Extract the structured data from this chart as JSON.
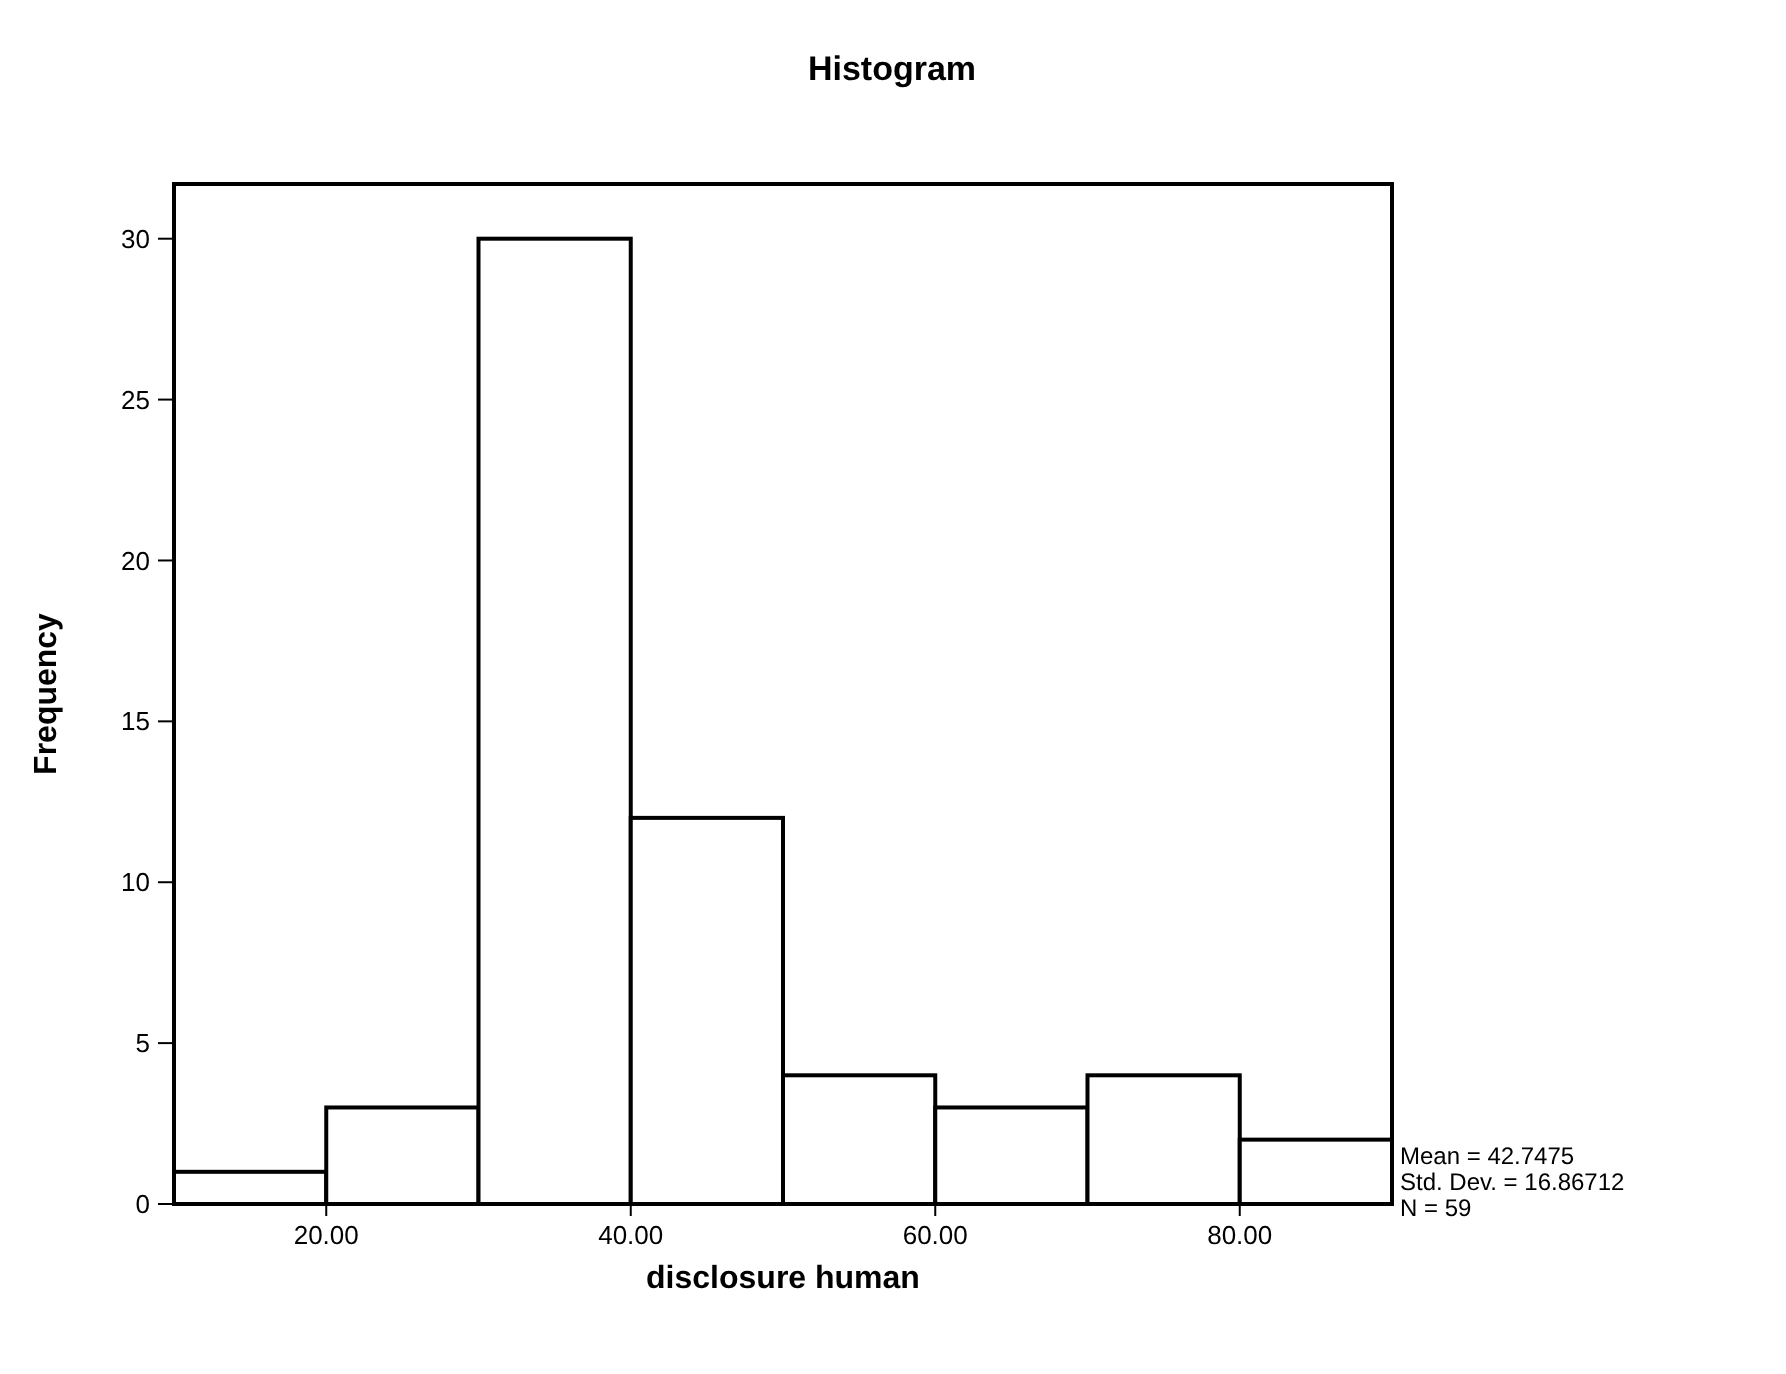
{
  "chart_data": {
    "type": "histogram",
    "title": "Histogram",
    "xlabel": "disclosure human",
    "ylabel": "Frequency",
    "bins": [
      10,
      20,
      30,
      40,
      50,
      60,
      70,
      80,
      90
    ],
    "values": [
      1,
      3,
      30,
      12,
      4,
      3,
      4,
      2
    ],
    "color": "#ffffff",
    "xlim": [
      10,
      90
    ],
    "xticks": [
      {
        "value": 20,
        "label": "20.00"
      },
      {
        "value": 40,
        "label": "40.00"
      },
      {
        "value": 60,
        "label": "60.00"
      },
      {
        "value": 80,
        "label": "80.00"
      }
    ],
    "ylim": [
      0,
      31.7
    ],
    "yticks": [
      0,
      5,
      10,
      15,
      20,
      25,
      30
    ],
    "annotations": [
      "Mean = 42.7475",
      "Std. Dev. = 16.86712",
      "N = 59"
    ]
  }
}
